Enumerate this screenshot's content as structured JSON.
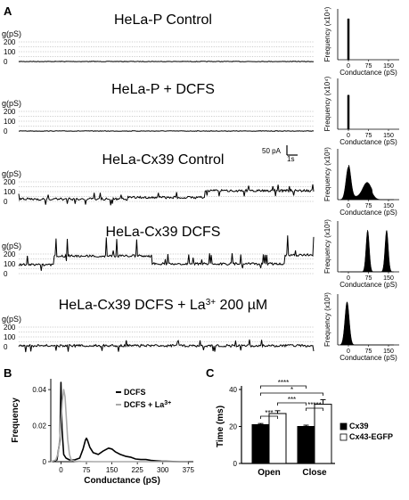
{
  "panel_a": {
    "letter": "A",
    "trace_y_label": "g(pS)",
    "trace_ticks": [
      "200",
      "100",
      "0"
    ],
    "scale_bar_current": "50 pA",
    "scale_bar_time": "1s",
    "hist_x_label": "Conductance (pS)",
    "hist_ticks": [
      "0",
      "75",
      "150"
    ],
    "rows": [
      {
        "title": "HeLa-P Control",
        "hist_y_label": "Frequency (x10⁴)",
        "sup": ""
      },
      {
        "title": "HeLa-P + DCFS",
        "hist_y_label": "Frequency (x10⁴)",
        "sup": ""
      },
      {
        "title": "HeLa-Cx39 Control",
        "hist_y_label": "Frequency (x10³)",
        "sup": ""
      },
      {
        "title": "HeLa-Cx39 DCFS",
        "hist_y_label": "Frequency (x10³)",
        "sup": ""
      },
      {
        "title": "HeLa-Cx39 DCFS + La",
        "hist_y_label": "Frequency (x10³)",
        "sup": "3+",
        "title_suffix": " 200 µM"
      }
    ]
  },
  "chart_data": [
    {
      "type": "line",
      "panel": "B",
      "xlabel": "Conductance (pS)",
      "ylabel": "Frequency",
      "x_ticks": [
        "0",
        "75",
        "150",
        "225",
        "300",
        "375"
      ],
      "y_ticks": [
        "0",
        "0.02",
        "0.04"
      ],
      "xlim": [
        -30,
        390
      ],
      "ylim": [
        0,
        0.046
      ],
      "legend": {
        "placement": "top-right"
      },
      "series": [
        {
          "name": "DCFS",
          "color": "#000000",
          "x": [
            -25,
            -12,
            -3,
            0,
            3,
            8,
            15,
            25,
            40,
            55,
            65,
            72,
            75,
            78,
            85,
            95,
            110,
            125,
            140,
            150,
            160,
            175,
            190,
            205,
            220,
            235,
            250,
            265,
            280,
            295,
            310,
            330,
            350,
            375
          ],
          "y": [
            0,
            0.001,
            0.012,
            0.044,
            0.018,
            0.004,
            0.002,
            0.001,
            0.001,
            0.002,
            0.007,
            0.012,
            0.013,
            0.012,
            0.008,
            0.005,
            0.004,
            0.006,
            0.0075,
            0.007,
            0.0055,
            0.004,
            0.003,
            0.0025,
            0.0015,
            0.0012,
            0.0012,
            0.0007,
            0.0005,
            0.0003,
            0.0002,
            0.0001,
            0.0,
            0.0
          ]
        },
        {
          "name": "DCFS + La",
          "name_sup": "3+",
          "color": "#aaaaaa",
          "x": [
            -30,
            -15,
            -8,
            -4,
            0,
            4,
            8,
            12,
            16,
            20,
            25,
            30,
            40,
            60,
            100,
            200,
            375
          ],
          "y": [
            0,
            0.001,
            0.005,
            0.012,
            0.022,
            0.034,
            0.04,
            0.036,
            0.024,
            0.012,
            0.004,
            0.001,
            0.0003,
            0.0001,
            0,
            0,
            0
          ]
        }
      ]
    },
    {
      "type": "bar",
      "panel": "C",
      "categories": [
        "Open",
        "Close"
      ],
      "ylabel": "Time (ms)",
      "ylim": [
        0,
        40
      ],
      "y_ticks": [
        "0",
        "20",
        "40"
      ],
      "legend": {
        "placement": "right"
      },
      "series": [
        {
          "name": "Cx39",
          "color": "#000000",
          "values": [
            21,
            20
          ],
          "errors": [
            0.6,
            0.7
          ]
        },
        {
          "name": "Cx43-EGFP",
          "color": "#ffffff",
          "values": [
            27,
            32
          ],
          "errors": [
            1.5,
            2.5
          ]
        }
      ],
      "significance": [
        {
          "label": "***",
          "between": "Open Cx39 vs Open Cx43-EGFP"
        },
        {
          "label": "*****",
          "between": "Close Cx39 vs Close Cx43-EGFP"
        },
        {
          "label": "***",
          "between": "Open Cx43-EGFP vs Close Cx39"
        },
        {
          "label": "*",
          "between": "Open Cx39 vs Close Cx43-EGFP"
        },
        {
          "label": "****",
          "between": "Open Cx39 vs Close Cx39"
        }
      ]
    }
  ],
  "panel_b": {
    "letter": "B"
  },
  "panel_c": {
    "letter": "C"
  }
}
